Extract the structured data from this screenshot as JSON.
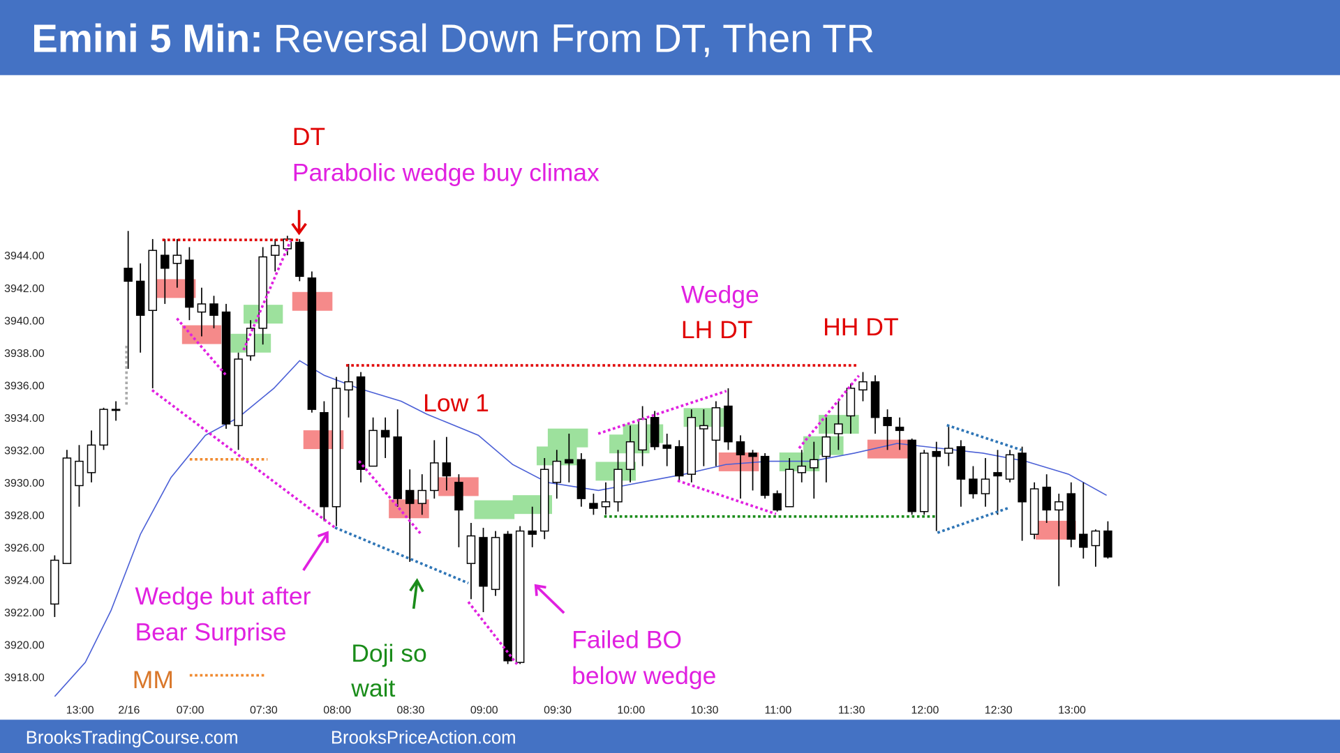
{
  "header": {
    "lead": "Emini 5 Min:",
    "text": "Reversal Down From DT, Then TR"
  },
  "footer": [
    "BrooksTradingCourse.com",
    "BrooksPriceAction.com"
  ],
  "chart_data": {
    "type": "candlestick",
    "up_color": "#ffffff",
    "down_color": "#000000",
    "categories": [
      null,
      null,
      "13:00",
      null,
      null,
      null,
      "2/16",
      null,
      null,
      null,
      null,
      "07:00",
      null,
      null,
      null,
      null,
      null,
      "07:30",
      null,
      null,
      null,
      null,
      null,
      "08:00",
      null,
      null,
      null,
      null,
      null,
      "08:30",
      null,
      null,
      null,
      null,
      null,
      "09:00",
      null,
      null,
      null,
      null,
      null,
      "09:30",
      null,
      null,
      null,
      null,
      null,
      "10:00",
      null,
      null,
      null,
      null,
      null,
      "10:30",
      null,
      null,
      null,
      null,
      null,
      "11:00",
      null,
      null,
      null,
      null,
      null,
      "11:30",
      null,
      null,
      null,
      null,
      null,
      "12:00",
      null,
      null,
      null,
      null,
      null,
      "12:30",
      null,
      null,
      null,
      null,
      null,
      "13:00",
      null,
      null,
      null
    ],
    "open": [
      3922.5,
      3925,
      3929.8,
      3930.6,
      3932.3,
      3934.5,
      3943.2,
      3942.4,
      3940.6,
      3944,
      3943.5,
      3943.7,
      3940.5,
      3941,
      3940.5,
      3933.5,
      3937.8,
      3939.5,
      3944,
      3944.4,
      3944.8,
      3942.6,
      3934.3,
      3928.5,
      3935.7,
      3936.5,
      3931,
      3933.2,
      3932.8,
      3929.5,
      3928.7,
      3929.5,
      3931.2,
      3930,
      3925,
      3926.6,
      3923.4,
      3926.8,
      3918.9,
      3927,
      3927,
      3930,
      3931.4,
      3931.4,
      3928.7,
      3928.5,
      3928.8,
      3930.8,
      3932,
      3934,
      3932.3,
      3932.2,
      3930.5,
      3933.3,
      3932.6,
      3934.7,
      3932.5,
      3931.8,
      3931.6,
      3929.3,
      3928.5,
      3930.6,
      3930.9,
      3931.6,
      3933,
      3934.1,
      3935.7,
      3936.2,
      3934,
      3933.4,
      3932.6,
      3928.2,
      3931.9,
      3931.8,
      3932.2,
      3930.2,
      3929.3,
      3930.6,
      3930.2,
      3931.8,
      3926.8,
      3929.7,
      3928.3,
      3929.3,
      3926.8,
      3926.1,
      3927
    ],
    "high": [
      3925.5,
      3932,
      3932.3,
      3933.2,
      3934.6,
      3935,
      3945.5,
      3943.5,
      3945,
      3945,
      3945,
      3944.5,
      3942,
      3941.5,
      3941,
      3938,
      3940,
      3944.5,
      3945,
      3945.2,
      3945,
      3943,
      3935,
      3936.5,
      3937.3,
      3936.8,
      3934,
      3934,
      3934.5,
      3930.8,
      3930.5,
      3932.6,
      3932.8,
      3930.5,
      3927.5,
      3927.2,
      3927,
      3927,
      3927.3,
      3928.5,
      3931.5,
      3932,
      3933,
      3931.8,
      3929.3,
      3930,
      3932,
      3933.5,
      3934.7,
      3934.4,
      3933,
      3932.6,
      3934.5,
      3934.5,
      3935,
      3935.8,
      3932.9,
      3932,
      3931.8,
      3929.5,
      3931.5,
      3932,
      3932.5,
      3934,
      3935,
      3936.1,
      3936.8,
      3936.6,
      3934.5,
      3934,
      3932.7,
      3932,
      3932.5,
      3933.5,
      3932.6,
      3931,
      3931.5,
      3932,
      3932,
      3932.2,
      3930,
      3930.5,
      3929.3,
      3930,
      3930,
      3927.1,
      3927.6
    ],
    "low": [
      3921.7,
      3925,
      3928.5,
      3930,
      3932,
      3933.8,
      3937,
      3938,
      3935.8,
      3941,
      3942,
      3940,
      3939,
      3939.5,
      3933.3,
      3932,
      3937.5,
      3938.5,
      3943,
      3944,
      3942.4,
      3934.3,
      3927.6,
      3927.3,
      3934,
      3930,
      3931,
      3931.5,
      3928.5,
      3925.1,
      3928,
      3929,
      3929.5,
      3926,
      3922.8,
      3922,
      3923,
      3918.8,
      3918.8,
      3926,
      3926.5,
      3929,
      3930,
      3928.5,
      3928,
      3928,
      3928.2,
      3930,
      3931,
      3932,
      3931,
      3930,
      3930,
      3931,
      3931,
      3932,
      3929,
      3929.5,
      3929,
      3928.2,
      3928.5,
      3930,
      3929,
      3930,
      3932,
      3933,
      3935,
      3933,
      3932,
      3932,
      3928,
      3928,
      3927,
      3931,
      3928.5,
      3929,
      3928.5,
      3928,
      3930,
      3926.4,
      3926.5,
      3927.5,
      3923.6,
      3926,
      3925.3,
      3924.8,
      3925.3
    ],
    "close": [
      3925.2,
      3931.5,
      3931.3,
      3932.3,
      3934.5,
      3934.5,
      3942.4,
      3940.3,
      3944.3,
      3943.2,
      3944,
      3940.8,
      3941,
      3940.3,
      3933.6,
      3937.6,
      3939.5,
      3943.9,
      3944.6,
      3945,
      3942.7,
      3934.5,
      3928.5,
      3935.8,
      3936.2,
      3930.8,
      3933.2,
      3932.8,
      3929,
      3928.7,
      3929.5,
      3931.2,
      3930.4,
      3928.3,
      3926.7,
      3923.6,
      3926.6,
      3919,
      3927,
      3926.8,
      3930.8,
      3931.3,
      3931.2,
      3929,
      3928.4,
      3928.8,
      3930.8,
      3932.5,
      3933.9,
      3932.2,
      3932.1,
      3930.4,
      3934,
      3933.5,
      3934.6,
      3932.5,
      3931.7,
      3931.6,
      3929.2,
      3928.3,
      3930.8,
      3931,
      3931.4,
      3932.8,
      3933.6,
      3935.8,
      3936.2,
      3934,
      3933.5,
      3933.2,
      3928.2,
      3931.8,
      3931.6,
      3932.1,
      3930.2,
      3929.3,
      3930.2,
      3930.4,
      3931.7,
      3928.8,
      3929.6,
      3928.3,
      3928.8,
      3926.5,
      3926,
      3927,
      3925.4
    ],
    "ma": {
      "color": "#4a5fd6",
      "x": [
        0,
        2.5,
        4.6,
        7,
        9.5,
        12.3,
        15,
        17.9,
        20,
        22,
        24.8,
        28.3,
        30.4,
        34.6,
        37.4,
        40.2,
        44.4,
        47.9,
        51.4,
        54.8,
        58.3,
        61.8,
        65.3,
        68.8,
        72.3,
        75.8,
        79.3,
        82.8,
        85.9
      ],
      "values": [
        3916.8,
        3918.9,
        3922.1,
        3926.8,
        3930.3,
        3932.9,
        3934,
        3935.8,
        3937.5,
        3936.6,
        3935.8,
        3935,
        3934.2,
        3932.9,
        3931.1,
        3930,
        3929.5,
        3930,
        3930.5,
        3931.1,
        3931.3,
        3931.3,
        3931.8,
        3932.4,
        3932.1,
        3931.8,
        3931.3,
        3930.5,
        3929.2
      ]
    },
    "ylim": [
      3916,
      3950
    ],
    "yticks": [
      {
        "value": 3918,
        "label": "3918.00"
      },
      {
        "value": 3920,
        "label": "3920.00"
      },
      {
        "value": 3922,
        "label": "3922.00"
      },
      {
        "value": 3924,
        "label": "3924.00"
      },
      {
        "value": 3926,
        "label": "3926.00"
      },
      {
        "value": 3928,
        "label": "3928.00"
      },
      {
        "value": 3930,
        "label": "3930.00"
      },
      {
        "value": 3932,
        "label": "3932.00"
      },
      {
        "value": 3934,
        "label": "3934.00"
      },
      {
        "value": 3936,
        "label": "3936.00"
      },
      {
        "value": 3938,
        "label": "3938.00"
      },
      {
        "value": 3940,
        "label": "3940.00"
      },
      {
        "value": 3942,
        "label": "3942.00"
      },
      {
        "value": 3944,
        "label": "3944.00"
      }
    ],
    "annotations": [
      {
        "text": "DT",
        "color": "#e00000"
      },
      {
        "text": "Parabolic wedge buy climax",
        "color": "#e020e0"
      },
      {
        "text": "Wedge",
        "color": "#e020e0"
      },
      {
        "text": "LH DT",
        "color": "#e00000"
      },
      {
        "text": "HH DT",
        "color": "#e00000"
      },
      {
        "text": "Low 1",
        "color": "#e00000"
      },
      {
        "text": "Wedge but after",
        "color": "#e020e0"
      },
      {
        "text": "Bear Surprise",
        "color": "#e020e0"
      },
      {
        "text": "Doji so",
        "color": "#1a8c1a"
      },
      {
        "text": "wait",
        "color": "#1a8c1a"
      },
      {
        "text": "Failed BO",
        "color": "#e020e0"
      },
      {
        "text": "below wedge",
        "color": "#e020e0"
      },
      {
        "text": "MM",
        "color": "#d9772a"
      }
    ]
  }
}
